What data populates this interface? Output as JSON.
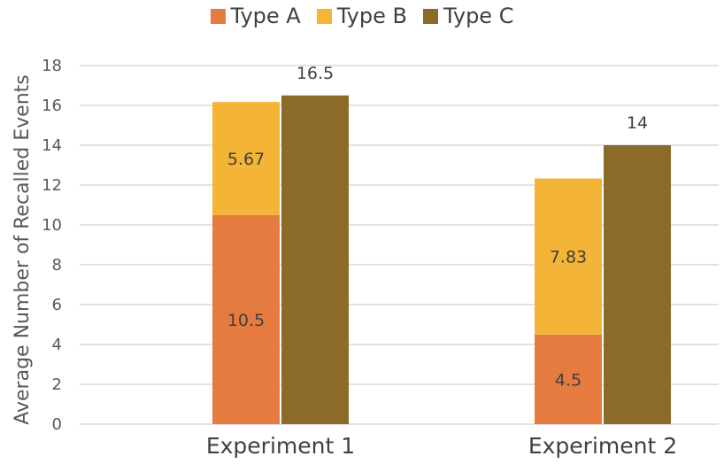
{
  "colors": {
    "type_a": "#E57B3E",
    "type_b": "#F4B437",
    "type_c": "#8C6A28",
    "grid": "#D9D9D9",
    "axis": "#D9D9D9"
  },
  "chart_data": {
    "type": "bar",
    "layout": "stacked + clustered",
    "categories": [
      "Experiment 1",
      "Experiment 2"
    ],
    "series": [
      {
        "name": "Type A",
        "stack": "AB",
        "values": [
          10.5,
          4.5
        ],
        "labels": [
          "10.5",
          "4.5"
        ]
      },
      {
        "name": "Type B",
        "stack": "AB",
        "values": [
          5.67,
          7.83
        ],
        "labels": [
          "5.67",
          "7.83"
        ]
      },
      {
        "name": "Type C",
        "stack": "C",
        "values": [
          16.5,
          14
        ],
        "labels": [
          "16.5",
          "14"
        ]
      }
    ],
    "title": "",
    "xlabel": "",
    "ylabel": "Average Number of Recalled Events",
    "ylim": [
      0,
      18
    ],
    "yticks": [
      "0",
      "2",
      "4",
      "6",
      "8",
      "10",
      "12",
      "14",
      "16",
      "18"
    ],
    "grid": true,
    "legend_position": "top"
  }
}
